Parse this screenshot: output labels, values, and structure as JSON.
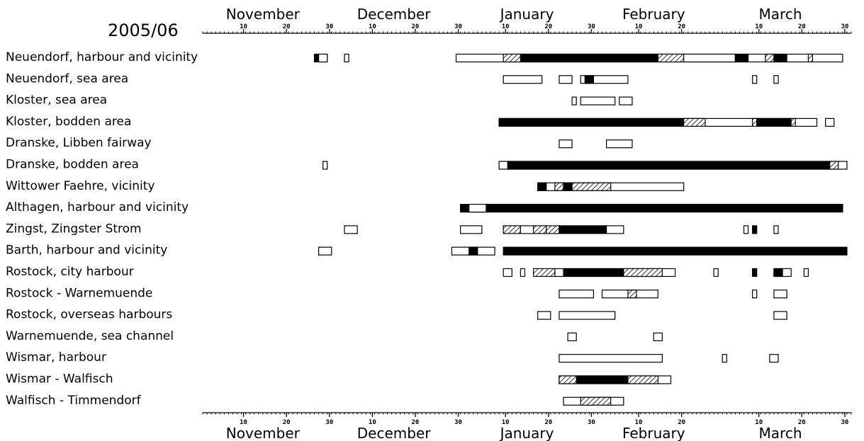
{
  "chart_data": {
    "type": "gantt",
    "title": "2005/06",
    "months_top": [
      "November",
      "December",
      "January",
      "February",
      "March"
    ],
    "months_bottom": [
      "November",
      "December",
      "January",
      "February",
      "March"
    ],
    "tick_labels": [
      "10",
      "20",
      "30",
      "10",
      "20",
      "30",
      "10",
      "20",
      "30",
      "10",
      "20",
      "10",
      "20",
      "30"
    ],
    "categories": [
      "Neuendorf, harbour and vicinity",
      "Neuendorf, sea area",
      "Kloster, sea area",
      "Kloster, bodden area",
      "Dranske, Libben fairway",
      "Dranske, bodden area",
      "Wittower Faehre, vicinity",
      "Althagen, harbour and vicinity",
      "Zingst, Zingster Strom",
      "Barth, harbour and vicinity",
      "Rostock, city harbour",
      "Rostock - Warnemuende",
      "Rostock, overseas harbours",
      "Warnemuende, sea channel",
      "Wismar, harbour",
      "Wismar - Walfisch",
      "Walfisch - Timmendorf"
    ],
    "series": [
      {
        "row": 0,
        "ice": [
          {
            "start": "2005-11-27",
            "end": "2005-11-30",
            "fill": "black"
          },
          {
            "start": "2005-11-28",
            "end": "2005-11-30",
            "fill": "white"
          },
          {
            "start": "2005-12-04",
            "end": "2005-12-05",
            "fill": "white"
          },
          {
            "start": "2005-12-30",
            "end": "2006-03-30",
            "fill": "white"
          },
          {
            "start": "2006-01-10",
            "end": "2006-01-14",
            "fill": "hatched"
          },
          {
            "start": "2006-01-14",
            "end": "2006-02-15",
            "fill": "black"
          },
          {
            "start": "2006-02-15",
            "end": "2006-02-21",
            "fill": "hatched"
          },
          {
            "start": "2006-02-21",
            "end": "2006-03-05",
            "fill": "white"
          },
          {
            "start": "2006-03-05",
            "end": "2006-03-08",
            "fill": "black"
          },
          {
            "start": "2006-03-12",
            "end": "2006-03-14",
            "fill": "hatched"
          },
          {
            "start": "2006-03-14",
            "end": "2006-03-17",
            "fill": "black"
          },
          {
            "start": "2006-03-22",
            "end": "2006-03-23",
            "fill": "hatched"
          }
        ]
      },
      {
        "row": 1,
        "ice": [
          {
            "start": "2006-01-10",
            "end": "2006-01-19",
            "fill": "white"
          },
          {
            "start": "2006-01-23",
            "end": "2006-01-26",
            "fill": "white"
          },
          {
            "start": "2006-01-28",
            "end": "2006-02-08",
            "fill": "white"
          },
          {
            "start": "2006-01-29",
            "end": "2006-01-31",
            "fill": "black"
          },
          {
            "start": "2006-03-09",
            "end": "2006-03-10",
            "fill": "white"
          },
          {
            "start": "2006-03-14",
            "end": "2006-03-15",
            "fill": "white"
          }
        ]
      },
      {
        "row": 2,
        "ice": [
          {
            "start": "2006-01-26",
            "end": "2006-01-27",
            "fill": "white"
          },
          {
            "start": "2006-01-28",
            "end": "2006-02-05",
            "fill": "white"
          },
          {
            "start": "2006-02-06",
            "end": "2006-02-09",
            "fill": "white"
          }
        ]
      },
      {
        "row": 3,
        "ice": [
          {
            "start": "2006-01-09",
            "end": "2006-03-24",
            "fill": "white"
          },
          {
            "start": "2006-01-09",
            "end": "2006-02-21",
            "fill": "black"
          },
          {
            "start": "2006-02-21",
            "end": "2006-02-26",
            "fill": "hatched"
          },
          {
            "start": "2006-03-09",
            "end": "2006-03-10",
            "fill": "hatched"
          },
          {
            "start": "2006-03-10",
            "end": "2006-03-18",
            "fill": "black"
          },
          {
            "start": "2006-03-18",
            "end": "2006-03-19",
            "fill": "hatched"
          },
          {
            "start": "2006-03-26",
            "end": "2006-03-28",
            "fill": "white"
          }
        ]
      },
      {
        "row": 4,
        "ice": [
          {
            "start": "2006-01-23",
            "end": "2006-01-26",
            "fill": "white"
          },
          {
            "start": "2006-02-03",
            "end": "2006-02-09",
            "fill": "white"
          }
        ]
      },
      {
        "row": 5,
        "ice": [
          {
            "start": "2005-11-29",
            "end": "2005-11-30",
            "fill": "white"
          },
          {
            "start": "2006-01-09",
            "end": "2006-03-31",
            "fill": "white"
          },
          {
            "start": "2006-01-11",
            "end": "2006-03-27",
            "fill": "black"
          },
          {
            "start": "2006-03-27",
            "end": "2006-03-29",
            "fill": "hatched"
          }
        ]
      },
      {
        "row": 6,
        "ice": [
          {
            "start": "2006-01-18",
            "end": "2006-02-21",
            "fill": "white"
          },
          {
            "start": "2006-01-18",
            "end": "2006-01-20",
            "fill": "black"
          },
          {
            "start": "2006-01-22",
            "end": "2006-01-24",
            "fill": "hatched"
          },
          {
            "start": "2006-01-24",
            "end": "2006-01-26",
            "fill": "black"
          },
          {
            "start": "2006-01-26",
            "end": "2006-02-04",
            "fill": "hatched"
          }
        ]
      },
      {
        "row": 7,
        "ice": [
          {
            "start": "2005-12-31",
            "end": "2006-03-30",
            "fill": "black"
          },
          {
            "start": "2006-01-02",
            "end": "2006-01-06",
            "fill": "white"
          }
        ]
      },
      {
        "row": 8,
        "ice": [
          {
            "start": "2005-12-04",
            "end": "2005-12-07",
            "fill": "white"
          },
          {
            "start": "2005-12-31",
            "end": "2006-01-05",
            "fill": "white"
          },
          {
            "start": "2006-01-10",
            "end": "2006-01-14",
            "fill": "hatched"
          },
          {
            "start": "2006-01-14",
            "end": "2006-01-17",
            "fill": "white"
          },
          {
            "start": "2006-01-17",
            "end": "2006-01-20",
            "fill": "hatched"
          },
          {
            "start": "2006-01-20",
            "end": "2006-01-23",
            "fill": "hatched"
          },
          {
            "start": "2006-01-23",
            "end": "2006-02-03",
            "fill": "black"
          },
          {
            "start": "2006-02-03",
            "end": "2006-02-07",
            "fill": "white"
          },
          {
            "start": "2006-03-07",
            "end": "2006-03-08",
            "fill": "white"
          },
          {
            "start": "2006-03-09",
            "end": "2006-03-10",
            "fill": "black"
          },
          {
            "start": "2006-03-14",
            "end": "2006-03-15",
            "fill": "white"
          }
        ]
      },
      {
        "row": 9,
        "ice": [
          {
            "start": "2005-11-28",
            "end": "2005-11-31",
            "fill": "white"
          },
          {
            "start": "2005-12-29",
            "end": "2006-01-08",
            "fill": "white"
          },
          {
            "start": "2006-01-02",
            "end": "2006-01-04",
            "fill": "black"
          },
          {
            "start": "2006-01-10",
            "end": "2006-03-31",
            "fill": "black"
          }
        ]
      },
      {
        "row": 10,
        "ice": [
          {
            "start": "2006-01-10",
            "end": "2006-01-12",
            "fill": "white"
          },
          {
            "start": "2006-01-14",
            "end": "2006-01-15",
            "fill": "white"
          },
          {
            "start": "2006-01-17",
            "end": "2006-01-22",
            "fill": "hatched"
          },
          {
            "start": "2006-01-22",
            "end": "2006-02-19",
            "fill": "white"
          },
          {
            "start": "2006-01-24",
            "end": "2006-02-07",
            "fill": "black"
          },
          {
            "start": "2006-02-07",
            "end": "2006-02-16",
            "fill": "hatched"
          },
          {
            "start": "2006-02-28",
            "end": "2006-03-01",
            "fill": "white"
          },
          {
            "start": "2006-03-09",
            "end": "2006-03-10",
            "fill": "black"
          },
          {
            "start": "2006-03-14",
            "end": "2006-03-18",
            "fill": "white"
          },
          {
            "start": "2006-03-14",
            "end": "2006-03-16",
            "fill": "black"
          },
          {
            "start": "2006-03-21",
            "end": "2006-03-22",
            "fill": "white"
          }
        ]
      },
      {
        "row": 11,
        "ice": [
          {
            "start": "2006-01-23",
            "end": "2006-01-31",
            "fill": "white"
          },
          {
            "start": "2006-02-02",
            "end": "2006-02-15",
            "fill": "white"
          },
          {
            "start": "2006-02-08",
            "end": "2006-02-10",
            "fill": "hatched"
          },
          {
            "start": "2006-03-09",
            "end": "2006-03-10",
            "fill": "white"
          },
          {
            "start": "2006-03-14",
            "end": "2006-03-17",
            "fill": "white"
          }
        ]
      },
      {
        "row": 12,
        "ice": [
          {
            "start": "2006-01-18",
            "end": "2006-01-21",
            "fill": "white"
          },
          {
            "start": "2006-01-23",
            "end": "2006-02-05",
            "fill": "white"
          },
          {
            "start": "2006-03-14",
            "end": "2006-03-17",
            "fill": "white"
          }
        ]
      },
      {
        "row": 13,
        "ice": [
          {
            "start": "2006-01-25",
            "end": "2006-01-27",
            "fill": "white"
          },
          {
            "start": "2006-02-14",
            "end": "2006-02-16",
            "fill": "white"
          }
        ]
      },
      {
        "row": 14,
        "ice": [
          {
            "start": "2006-01-23",
            "end": "2006-02-16",
            "fill": "white"
          },
          {
            "start": "2006-03-02",
            "end": "2006-03-03",
            "fill": "white"
          },
          {
            "start": "2006-03-13",
            "end": "2006-03-15",
            "fill": "white"
          }
        ]
      },
      {
        "row": 15,
        "ice": [
          {
            "start": "2006-01-23",
            "end": "2006-02-18",
            "fill": "white"
          },
          {
            "start": "2006-01-23",
            "end": "2006-01-27",
            "fill": "hatched"
          },
          {
            "start": "2006-01-27",
            "end": "2006-02-08",
            "fill": "black"
          },
          {
            "start": "2006-02-08",
            "end": "2006-02-15",
            "fill": "hatched"
          }
        ]
      },
      {
        "row": 16,
        "ice": [
          {
            "start": "2006-01-24",
            "end": "2006-02-07",
            "fill": "white"
          },
          {
            "start": "2006-01-28",
            "end": "2006-02-04",
            "fill": "hatched"
          }
        ]
      }
    ]
  }
}
